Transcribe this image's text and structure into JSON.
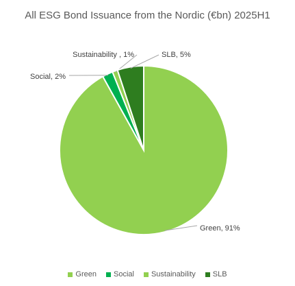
{
  "chart_data": {
    "type": "pie",
    "title": "All ESG Bond Issuance from the Nordic (€bn) 2025H1",
    "legend_position": "bottom",
    "slices": [
      {
        "name": "Green",
        "value": 91,
        "label": "Green, 91%",
        "color": "#92d050"
      },
      {
        "name": "Social",
        "value": 2,
        "label": "Social, 2%",
        "color": "#00b050"
      },
      {
        "name": "Sustainability",
        "value": 1,
        "label": "Sustainability , 1%",
        "color": "#92d050"
      },
      {
        "name": "SLB",
        "value": 5,
        "label": "SLB, 5%",
        "color": "#2e7d1f"
      }
    ]
  }
}
